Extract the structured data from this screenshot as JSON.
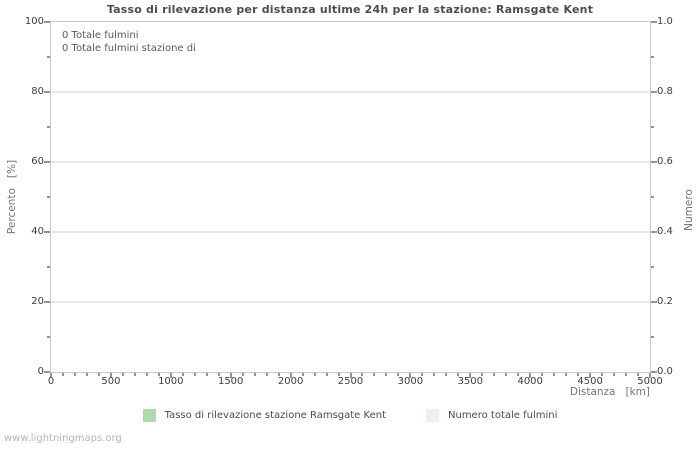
{
  "title": "Tasso di rilevazione per distanza ultime 24h per la stazione: Ramsgate Kent",
  "watermark": "www.lightningmaps.org",
  "axes": {
    "x": {
      "label": "Distanza   [km]"
    },
    "y_left": {
      "label": "Percento   [%]"
    },
    "y_right": {
      "label": "Numero"
    }
  },
  "plot_annotations": [
    "0 Totale fulmini",
    "0 Totale fulmini stazione di"
  ],
  "legend": [
    {
      "label": "Tasso di rilevazione stazione Ramsgate Kent",
      "color": "#aed8ae"
    },
    {
      "label": "Numero totale fulmini",
      "color": "#eeeefa"
    }
  ],
  "colors": {
    "plot_border": "#c8c8c8",
    "gridline": "#d4d4d4",
    "title_text": "#4d4d4d",
    "axis_title_text": "#757575",
    "tick_label_text": "#3d3d3d",
    "annotation_text": "#5a5a5a",
    "watermark_text": "#b5b5b5",
    "background": "#ffffff"
  },
  "chart_data": {
    "type": "line",
    "title": "Tasso di rilevazione per distanza ultime 24h per la stazione: Ramsgate Kent",
    "xlabel": "Distanza [km]",
    "ylabel": "Percento [%]",
    "ylabel_right": "Numero",
    "xlim": [
      0,
      5000
    ],
    "ylim_left": [
      0,
      100
    ],
    "ylim_right": [
      0.0,
      1.0
    ],
    "x_ticks": [
      0,
      500,
      1000,
      1500,
      2000,
      2500,
      3000,
      3500,
      4000,
      4500,
      5000
    ],
    "x_tick_labels": [
      "0",
      "500",
      "1000",
      "1500",
      "2000",
      "2500",
      "3000",
      "3500",
      "4000",
      "4500",
      "5000"
    ],
    "x_minor_step": 100,
    "y_left_ticks": [
      0,
      20,
      40,
      60,
      80,
      100
    ],
    "y_left_tick_labels": [
      "0",
      "20",
      "40",
      "60",
      "80",
      "100"
    ],
    "y_left_minor_step": 10,
    "y_right_ticks": [
      0,
      0.2,
      0.4,
      0.6,
      0.8,
      1
    ],
    "y_right_tick_labels": [
      "0.0",
      "0.2",
      "0.4",
      "0.6",
      "0.8",
      "1.0"
    ],
    "grid": "horizontal-major-only",
    "legend_position": "bottom-center",
    "series": [
      {
        "name": "Tasso di rilevazione stazione Ramsgate Kent",
        "color": "#aed8ae",
        "axis": "left",
        "values": []
      },
      {
        "name": "Numero totale fulmini",
        "color": "#eeeefa",
        "axis": "right",
        "values": []
      }
    ],
    "annotations": [
      {
        "text": "0 Totale fulmini",
        "position": "top-left"
      },
      {
        "text": "0 Totale fulmini stazione di",
        "position": "top-left"
      }
    ]
  }
}
